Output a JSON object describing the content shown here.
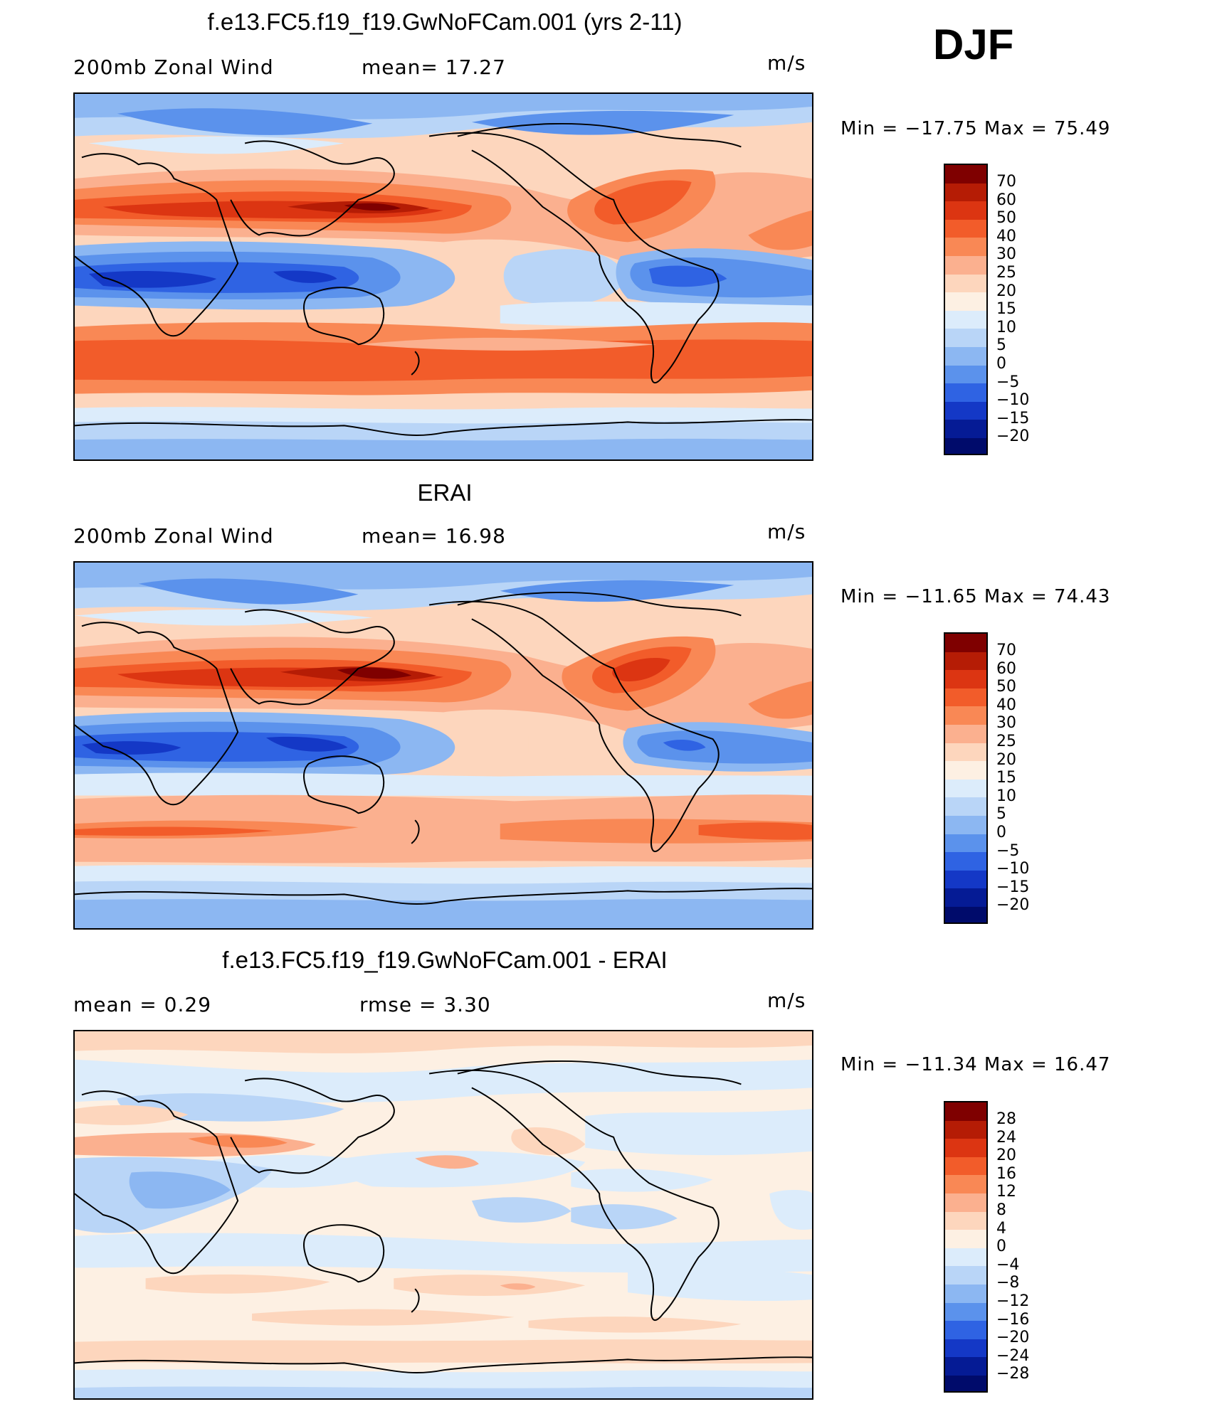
{
  "season": "DJF",
  "panels": [
    {
      "title": "f.e13.FC5.f19_f19.GwNoFCam.001 (yrs 2-11)",
      "left_label": "200mb  Zonal  Wind",
      "center_label": "mean=   17.27",
      "units": "m/s",
      "minmax": "Min  =  −17.75  Max  =    75.49",
      "colorbar": {
        "labels": [
          "70",
          "60",
          "50",
          "40",
          "30",
          "25",
          "20",
          "15",
          "10",
          "5",
          "0",
          "−5",
          "−10",
          "−15",
          "−20"
        ],
        "colors": [
          "#7f0000",
          "#b51c05",
          "#dc3512",
          "#f25c2a",
          "#f98855",
          "#fbb08f",
          "#fdd6bd",
          "#fdf0e3",
          "#dcecfb",
          "#b9d5f7",
          "#8cb7f2",
          "#5b92ec",
          "#2f63e3",
          "#1438c6",
          "#051b95",
          "#000b6b"
        ]
      }
    },
    {
      "title": "ERAI",
      "left_label": "200mb  Zonal  Wind",
      "center_label": "mean=   16.98",
      "units": "m/s",
      "minmax": "Min  =  −11.65  Max  =    74.43",
      "colorbar": {
        "labels": [
          "70",
          "60",
          "50",
          "40",
          "30",
          "25",
          "20",
          "15",
          "10",
          "5",
          "0",
          "−5",
          "−10",
          "−15",
          "−20"
        ],
        "colors": [
          "#7f0000",
          "#b51c05",
          "#dc3512",
          "#f25c2a",
          "#f98855",
          "#fbb08f",
          "#fdd6bd",
          "#fdf0e3",
          "#dcecfb",
          "#b9d5f7",
          "#8cb7f2",
          "#5b92ec",
          "#2f63e3",
          "#1438c6",
          "#051b95",
          "#000b6b"
        ]
      }
    },
    {
      "title": "f.e13.FC5.f19_f19.GwNoFCam.001 - ERAI",
      "left_label": "mean  =      0.29",
      "center_label": "rmse  =      3.30",
      "units": "m/s",
      "minmax": "Min  =  −11.34  Max  =    16.47",
      "colorbar": {
        "labels": [
          "28",
          "24",
          "20",
          "16",
          "12",
          "8",
          "4",
          "0",
          "−4",
          "−8",
          "−12",
          "−16",
          "−20",
          "−24",
          "−28"
        ],
        "colors": [
          "#7f0000",
          "#b51c05",
          "#dc3512",
          "#f25c2a",
          "#f98855",
          "#fbb08f",
          "#fdd6bd",
          "#fdf0e3",
          "#dcecfb",
          "#b9d5f7",
          "#8cb7f2",
          "#5b92ec",
          "#2f63e3",
          "#1438c6",
          "#051b95",
          "#000b6b"
        ]
      }
    }
  ]
}
